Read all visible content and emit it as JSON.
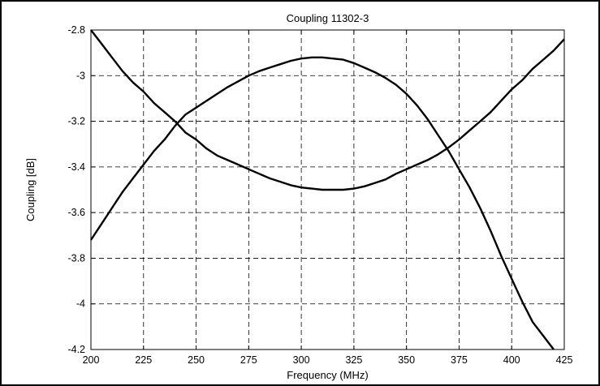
{
  "chart_data": {
    "type": "line",
    "title": "Coupling 11302-3",
    "xlabel": "Frequency (MHz)",
    "ylabel": "Coupling [dB]",
    "xlim": [
      200,
      425
    ],
    "ylim": [
      -4.2,
      -2.8
    ],
    "xticks": [
      200,
      225,
      250,
      275,
      300,
      325,
      350,
      375,
      400,
      425
    ],
    "yticks": [
      -2.8,
      -3,
      -3.2,
      -3.4,
      -3.6,
      -3.8,
      -4,
      -4.2
    ],
    "grid": true,
    "legend": "none",
    "colors": {
      "line": "#000000",
      "grid": "#000000",
      "border": "#000000"
    },
    "series": [
      {
        "x": [
          200,
          205,
          210,
          215,
          220,
          225,
          230,
          235,
          240,
          245,
          250,
          255,
          260,
          265,
          270,
          275,
          280,
          285,
          290,
          295,
          300,
          305,
          310,
          315,
          320,
          325,
          330,
          335,
          340,
          345,
          350,
          355,
          360,
          365,
          370,
          375,
          380,
          385,
          390,
          395,
          400,
          405,
          410,
          415,
          420,
          425
        ],
        "y": [
          -2.8,
          -2.86,
          -2.92,
          -2.98,
          -3.03,
          -3.07,
          -3.12,
          -3.16,
          -3.2,
          -3.25,
          -3.28,
          -3.32,
          -3.35,
          -3.37,
          -3.39,
          -3.41,
          -3.43,
          -3.45,
          -3.465,
          -3.48,
          -3.49,
          -3.495,
          -3.5,
          -3.5,
          -3.5,
          -3.495,
          -3.485,
          -3.47,
          -3.455,
          -3.43,
          -3.41,
          -3.39,
          -3.37,
          -3.345,
          -3.315,
          -3.28,
          -3.24,
          -3.2,
          -3.16,
          -3.11,
          -3.06,
          -3.02,
          -2.97,
          -2.93,
          -2.89,
          -2.84
        ]
      },
      {
        "x": [
          200,
          205,
          210,
          215,
          220,
          225,
          230,
          235,
          240,
          245,
          250,
          255,
          260,
          265,
          270,
          275,
          280,
          285,
          290,
          295,
          300,
          305,
          310,
          315,
          320,
          325,
          330,
          335,
          340,
          345,
          350,
          355,
          360,
          365,
          370,
          375,
          380,
          385,
          390,
          395,
          400,
          405,
          410,
          415,
          420
        ],
        "y": [
          -3.72,
          -3.65,
          -3.58,
          -3.51,
          -3.45,
          -3.39,
          -3.33,
          -3.28,
          -3.22,
          -3.17,
          -3.14,
          -3.11,
          -3.08,
          -3.05,
          -3.025,
          -3.0,
          -2.98,
          -2.965,
          -2.95,
          -2.935,
          -2.925,
          -2.92,
          -2.92,
          -2.925,
          -2.93,
          -2.945,
          -2.965,
          -2.985,
          -3.01,
          -3.04,
          -3.08,
          -3.13,
          -3.19,
          -3.26,
          -3.33,
          -3.41,
          -3.49,
          -3.58,
          -3.68,
          -3.79,
          -3.89,
          -3.99,
          -4.08,
          -4.14,
          -4.2
        ]
      }
    ]
  }
}
